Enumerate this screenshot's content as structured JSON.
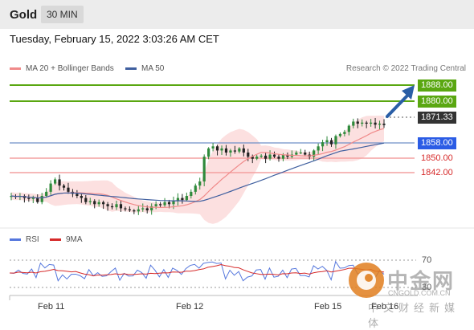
{
  "header": {
    "title": "Gold",
    "timeframe": "30 MIN"
  },
  "timestamp": "Tuesday, February 15, 2022 3:03:26 AM CET",
  "legend": {
    "ma20": "MA 20 + Bollinger Bands",
    "ma50": "MA 50",
    "copyright": "Research © 2022 Trading Central"
  },
  "rsi_legend": {
    "rsi": "RSI",
    "ma9": "9MA"
  },
  "price_levels": {
    "r2": "1888.00",
    "r1": "1880.00",
    "current": "1871.33",
    "pivot": "1858.00",
    "s1": "1850.00",
    "s2": "1842.00"
  },
  "x_labels": [
    "Feb 11",
    "Feb 12",
    "Feb 15",
    "Feb 16"
  ],
  "rsi_levels": {
    "upper": "70",
    "lower": "30"
  },
  "watermark": {
    "text": "中金网",
    "url": "CNGOLD.COM.CN",
    "sub": "中文财经新媒体"
  },
  "colors": {
    "ma20": "#f08a8a",
    "ma50": "#3f5f9f",
    "bollinger": "#fbd6d6",
    "support": "#f4a0a0",
    "resistance": "#5aa711",
    "pivot": "#2b5ce5",
    "rsi": "#5577dd",
    "ma9": "#d62a2a",
    "candle_up": "#2f8a3b",
    "candle_down": "#222222",
    "arrow": "#2a5ea6"
  },
  "chart_data": {
    "type": "candlestick",
    "title": "Gold",
    "timeframe": "30 MIN",
    "x_labels": [
      "Feb 11",
      "Feb 12",
      "Feb 15",
      "Feb 16"
    ],
    "ylim": [
      1830,
      1893
    ],
    "support_resistance": [
      1888.0,
      1880.0,
      1858.0,
      1850.0,
      1842.0
    ],
    "last_price": 1871.33,
    "pivot": 1858.0,
    "close_path": [
      1837,
      1836.5,
      1837,
      1836,
      1835.5,
      1836,
      1834,
      1837,
      1839,
      1843,
      1845,
      1842,
      1841,
      1839,
      1838,
      1837,
      1836,
      1834,
      1834.5,
      1833,
      1834,
      1833,
      1832,
      1831.5,
      1833,
      1831,
      1830.5,
      1830,
      1829.5,
      1830.5,
      1831,
      1830,
      1832,
      1833,
      1832.5,
      1834,
      1833,
      1834.5,
      1836,
      1835,
      1837,
      1839,
      1842,
      1844,
      1856,
      1860,
      1861,
      1859,
      1860,
      1858,
      1859,
      1858.5,
      1860,
      1858,
      1856,
      1855,
      1856,
      1856.5,
      1855,
      1857,
      1856,
      1855,
      1857,
      1856,
      1857,
      1858,
      1858,
      1857,
      1856,
      1859,
      1861,
      1863,
      1864,
      1862,
      1866,
      1867,
      1868,
      1871,
      1873,
      1872,
      1872.5,
      1872,
      1872.5,
      1871.5,
      1872,
      1871.33
    ],
    "rsi_range": [
      0,
      100
    ],
    "rsi_levels": [
      70,
      30
    ]
  }
}
